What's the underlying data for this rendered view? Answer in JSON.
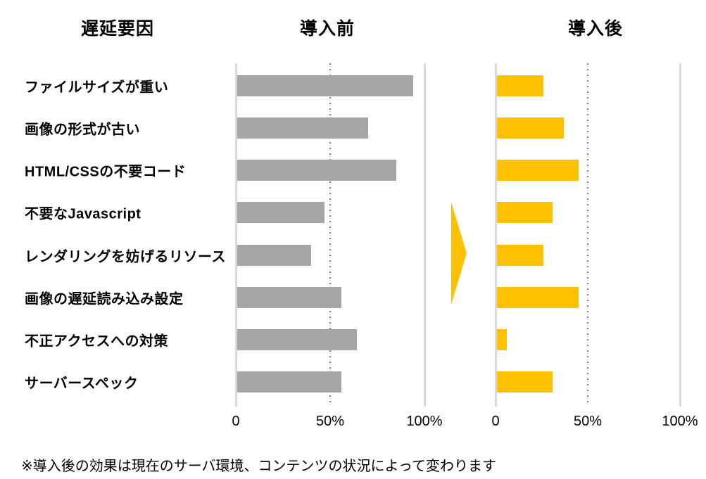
{
  "header": {
    "factors": "遅延要因",
    "before": "導入前",
    "after": "導入後"
  },
  "footer": {
    "note": "※導入後の効果は現在のサーバ環境、コンテンツの状況によって変わります"
  },
  "colors": {
    "before_bar": "#A6A6A6",
    "after_bar": "#FFC000",
    "arrow": "#FFC000",
    "axis_line": "#D9D9D9",
    "gridline": "#7F7F7F",
    "text": "#000000",
    "background": "#FFFFFF"
  },
  "chart_data": {
    "type": "bar",
    "orientation": "horizontal",
    "title": "",
    "categories": [
      "ファイルサイズが重い",
      "画像の形式が古い",
      "HTML/CSSの不要コード",
      "不要なJavascript",
      "レンダリングを妨げるリソース",
      "画像の遅延読み込み設定",
      "不正アクセスへの対策",
      "サーバースペック"
    ],
    "series": [
      {
        "name": "導入前",
        "color": "#A6A6A6",
        "values": [
          94,
          70,
          85,
          47,
          40,
          56,
          64,
          56
        ]
      },
      {
        "name": "導入後",
        "color": "#FFC000",
        "values": [
          26,
          37,
          45,
          31,
          26,
          45,
          6,
          31
        ]
      }
    ],
    "xlim": [
      0,
      100
    ],
    "x_ticks": [
      0,
      50,
      100
    ],
    "x_tick_labels": [
      "0",
      "50%",
      "100%"
    ],
    "gridlines": "solid light vertical lines at 0 and 100%, dotted vertical line at 50%",
    "legend": "none",
    "annotation": "yellow right-pointing arrow between before and after charts"
  }
}
